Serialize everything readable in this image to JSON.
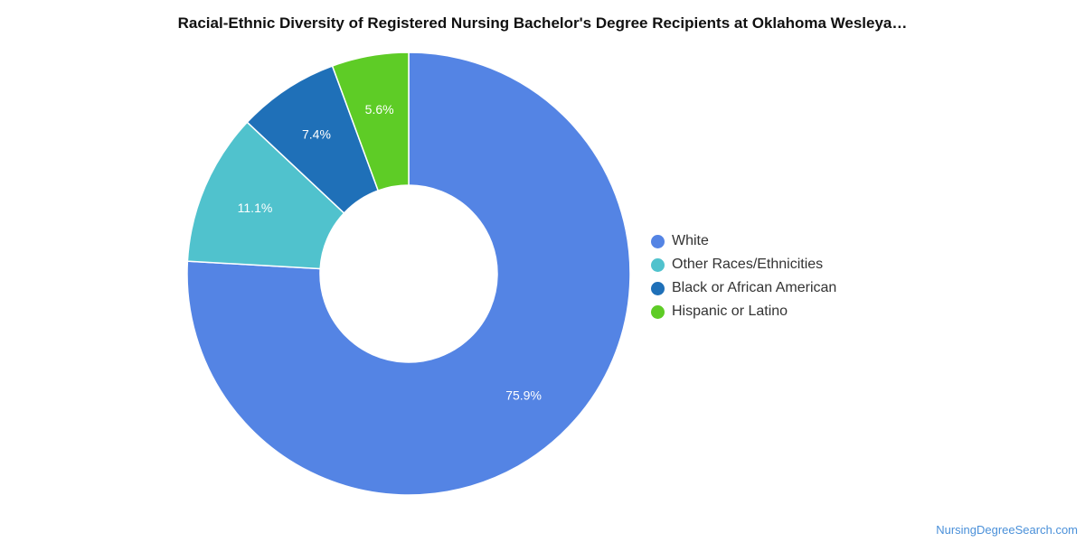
{
  "chart_data": {
    "type": "pie",
    "title": "Racial-Ethnic Diversity of Registered Nursing Bachelor's Degree Recipients at Oklahoma Wesleya…",
    "donut": true,
    "categories": [
      "White",
      "Other Races/Ethnicities",
      "Black or African American",
      "Hispanic or Latino"
    ],
    "values": [
      75.9,
      11.1,
      7.4,
      5.6
    ],
    "labels": [
      "75.9%",
      "11.1%",
      "7.4%",
      "5.6%"
    ],
    "colors": [
      "#5484e4",
      "#50c2cd",
      "#1f70b8",
      "#5ecc26"
    ],
    "legend_position": "right"
  },
  "source": "NursingDegreeSearch.com"
}
